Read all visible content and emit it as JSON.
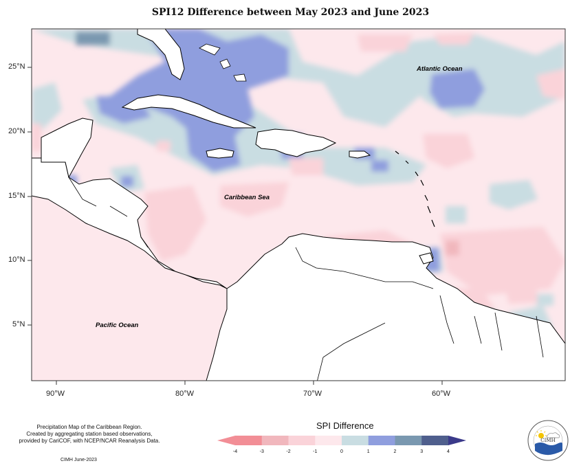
{
  "title": "SPI12 Difference between May 2023 and June 2023",
  "map": {
    "region": "Caribbean",
    "lat_labels": [
      "25°N",
      "20°N",
      "15°N",
      "10°N",
      "5°N"
    ],
    "lon_labels": [
      "90°W",
      "80°W",
      "70°W",
      "60°W"
    ],
    "place_labels": {
      "atlantic": "Atlantic Ocean",
      "caribbean": "Caribbean Sea",
      "pacific": "Pacific Ocean"
    }
  },
  "legend": {
    "title": "SPI Difference",
    "ticks": [
      "-4",
      "-3",
      "-2",
      "-1",
      "0",
      "1",
      "2",
      "3",
      "4"
    ],
    "colors": [
      "#f28e96",
      "#f1b7bd",
      "#fad3d9",
      "#fde8ec",
      "#c9dde2",
      "#8f9ede",
      "#7a98b0",
      "#4f5f8d",
      "#3b3a8a"
    ]
  },
  "footer": {
    "line1": "Precipitation Map of the Caribbean Region.",
    "line2": "Created by aggregating station based observations,",
    "line3": "provided by CariCOF, with NCEP/NCAR Reanalysis Data.",
    "credit": "CIMH June-2023"
  },
  "logo": {
    "text": "CIMH"
  }
}
